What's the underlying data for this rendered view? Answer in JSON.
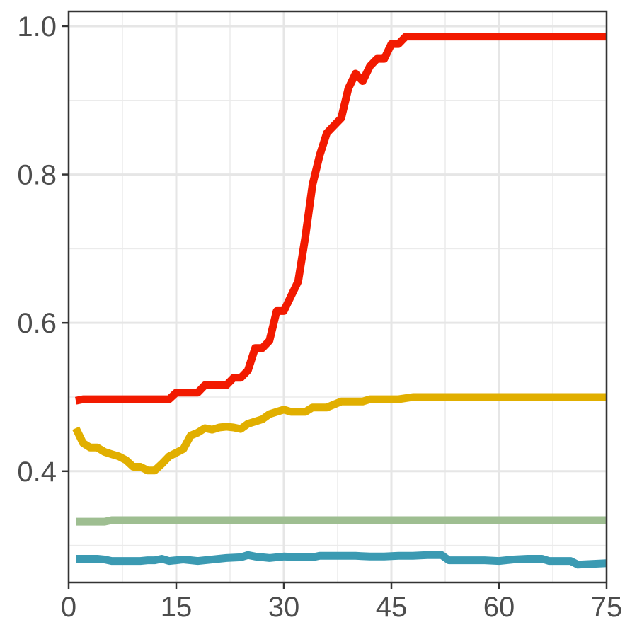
{
  "chart_data": {
    "type": "line",
    "title": "",
    "xlabel": "",
    "ylabel": "",
    "xlim": [
      0,
      75
    ],
    "ylim": [
      0.25,
      1.02
    ],
    "grid": true,
    "legend": "none",
    "xticks": [
      "0",
      "15",
      "30",
      "45",
      "60",
      "75"
    ],
    "yticks": [
      "0.4",
      "0.6",
      "0.8",
      "1.0"
    ],
    "series": [
      {
        "color": "#f21a00",
        "points": [
          [
            1,
            0.495
          ],
          [
            2,
            0.497
          ],
          [
            4,
            0.497
          ],
          [
            6,
            0.497
          ],
          [
            8,
            0.497
          ],
          [
            10,
            0.497
          ],
          [
            12,
            0.497
          ],
          [
            14,
            0.497
          ],
          [
            15,
            0.506
          ],
          [
            16,
            0.506
          ],
          [
            18,
            0.506
          ],
          [
            19,
            0.516
          ],
          [
            21,
            0.516
          ],
          [
            22,
            0.516
          ],
          [
            23,
            0.526
          ],
          [
            24,
            0.526
          ],
          [
            25,
            0.536
          ],
          [
            26,
            0.566
          ],
          [
            27,
            0.566
          ],
          [
            28,
            0.576
          ],
          [
            29,
            0.616
          ],
          [
            30,
            0.616
          ],
          [
            31,
            0.636
          ],
          [
            32,
            0.656
          ],
          [
            33,
            0.716
          ],
          [
            34,
            0.786
          ],
          [
            35,
            0.826
          ],
          [
            36,
            0.856
          ],
          [
            37,
            0.866
          ],
          [
            38,
            0.876
          ],
          [
            39,
            0.916
          ],
          [
            40,
            0.936
          ],
          [
            41,
            0.926
          ],
          [
            42,
            0.946
          ],
          [
            43,
            0.956
          ],
          [
            44,
            0.956
          ],
          [
            45,
            0.976
          ],
          [
            46,
            0.976
          ],
          [
            47,
            0.986
          ],
          [
            50,
            0.986
          ],
          [
            60,
            0.986
          ],
          [
            70,
            0.986
          ],
          [
            75,
            0.986
          ]
        ]
      },
      {
        "color": "#e1af00",
        "points": [
          [
            1,
            0.458
          ],
          [
            2,
            0.438
          ],
          [
            3,
            0.432
          ],
          [
            4,
            0.432
          ],
          [
            5,
            0.426
          ],
          [
            6,
            0.423
          ],
          [
            7,
            0.42
          ],
          [
            8,
            0.415
          ],
          [
            9,
            0.406
          ],
          [
            10,
            0.406
          ],
          [
            11,
            0.401
          ],
          [
            12,
            0.401
          ],
          [
            13,
            0.41
          ],
          [
            14,
            0.42
          ],
          [
            15,
            0.425
          ],
          [
            16,
            0.43
          ],
          [
            17,
            0.448
          ],
          [
            18,
            0.452
          ],
          [
            19,
            0.458
          ],
          [
            20,
            0.456
          ],
          [
            21,
            0.459
          ],
          [
            22,
            0.46
          ],
          [
            23,
            0.459
          ],
          [
            24,
            0.457
          ],
          [
            25,
            0.464
          ],
          [
            26,
            0.467
          ],
          [
            27,
            0.47
          ],
          [
            28,
            0.477
          ],
          [
            29,
            0.48
          ],
          [
            30,
            0.483
          ],
          [
            31,
            0.48
          ],
          [
            32,
            0.48
          ],
          [
            33,
            0.48
          ],
          [
            34,
            0.486
          ],
          [
            35,
            0.486
          ],
          [
            36,
            0.486
          ],
          [
            37,
            0.49
          ],
          [
            38,
            0.494
          ],
          [
            39,
            0.494
          ],
          [
            40,
            0.494
          ],
          [
            41,
            0.494
          ],
          [
            42,
            0.497
          ],
          [
            44,
            0.497
          ],
          [
            46,
            0.497
          ],
          [
            48,
            0.5
          ],
          [
            50,
            0.5
          ],
          [
            60,
            0.5
          ],
          [
            70,
            0.5
          ],
          [
            75,
            0.5
          ]
        ]
      },
      {
        "color": "#9ebe91",
        "points": [
          [
            1,
            0.332
          ],
          [
            5,
            0.332
          ],
          [
            6,
            0.334
          ],
          [
            10,
            0.334
          ],
          [
            20,
            0.334
          ],
          [
            40,
            0.334
          ],
          [
            60,
            0.334
          ],
          [
            75,
            0.334
          ]
        ]
      },
      {
        "color": "#3b9ab2",
        "points": [
          [
            1,
            0.282
          ],
          [
            3,
            0.282
          ],
          [
            4,
            0.282
          ],
          [
            5,
            0.281
          ],
          [
            6,
            0.279
          ],
          [
            8,
            0.279
          ],
          [
            10,
            0.279
          ],
          [
            11,
            0.28
          ],
          [
            12,
            0.28
          ],
          [
            13,
            0.282
          ],
          [
            14,
            0.279
          ],
          [
            16,
            0.281
          ],
          [
            18,
            0.279
          ],
          [
            20,
            0.281
          ],
          [
            22,
            0.283
          ],
          [
            24,
            0.284
          ],
          [
            25,
            0.287
          ],
          [
            26,
            0.285
          ],
          [
            28,
            0.283
          ],
          [
            30,
            0.285
          ],
          [
            32,
            0.284
          ],
          [
            34,
            0.284
          ],
          [
            35,
            0.286
          ],
          [
            40,
            0.286
          ],
          [
            42,
            0.285
          ],
          [
            44,
            0.285
          ],
          [
            46,
            0.286
          ],
          [
            48,
            0.286
          ],
          [
            50,
            0.287
          ],
          [
            52,
            0.287
          ],
          [
            53,
            0.28
          ],
          [
            58,
            0.28
          ],
          [
            60,
            0.279
          ],
          [
            62,
            0.281
          ],
          [
            64,
            0.282
          ],
          [
            66,
            0.282
          ],
          [
            67,
            0.279
          ],
          [
            70,
            0.279
          ],
          [
            71,
            0.274
          ],
          [
            73,
            0.275
          ],
          [
            75,
            0.276
          ]
        ]
      }
    ]
  }
}
